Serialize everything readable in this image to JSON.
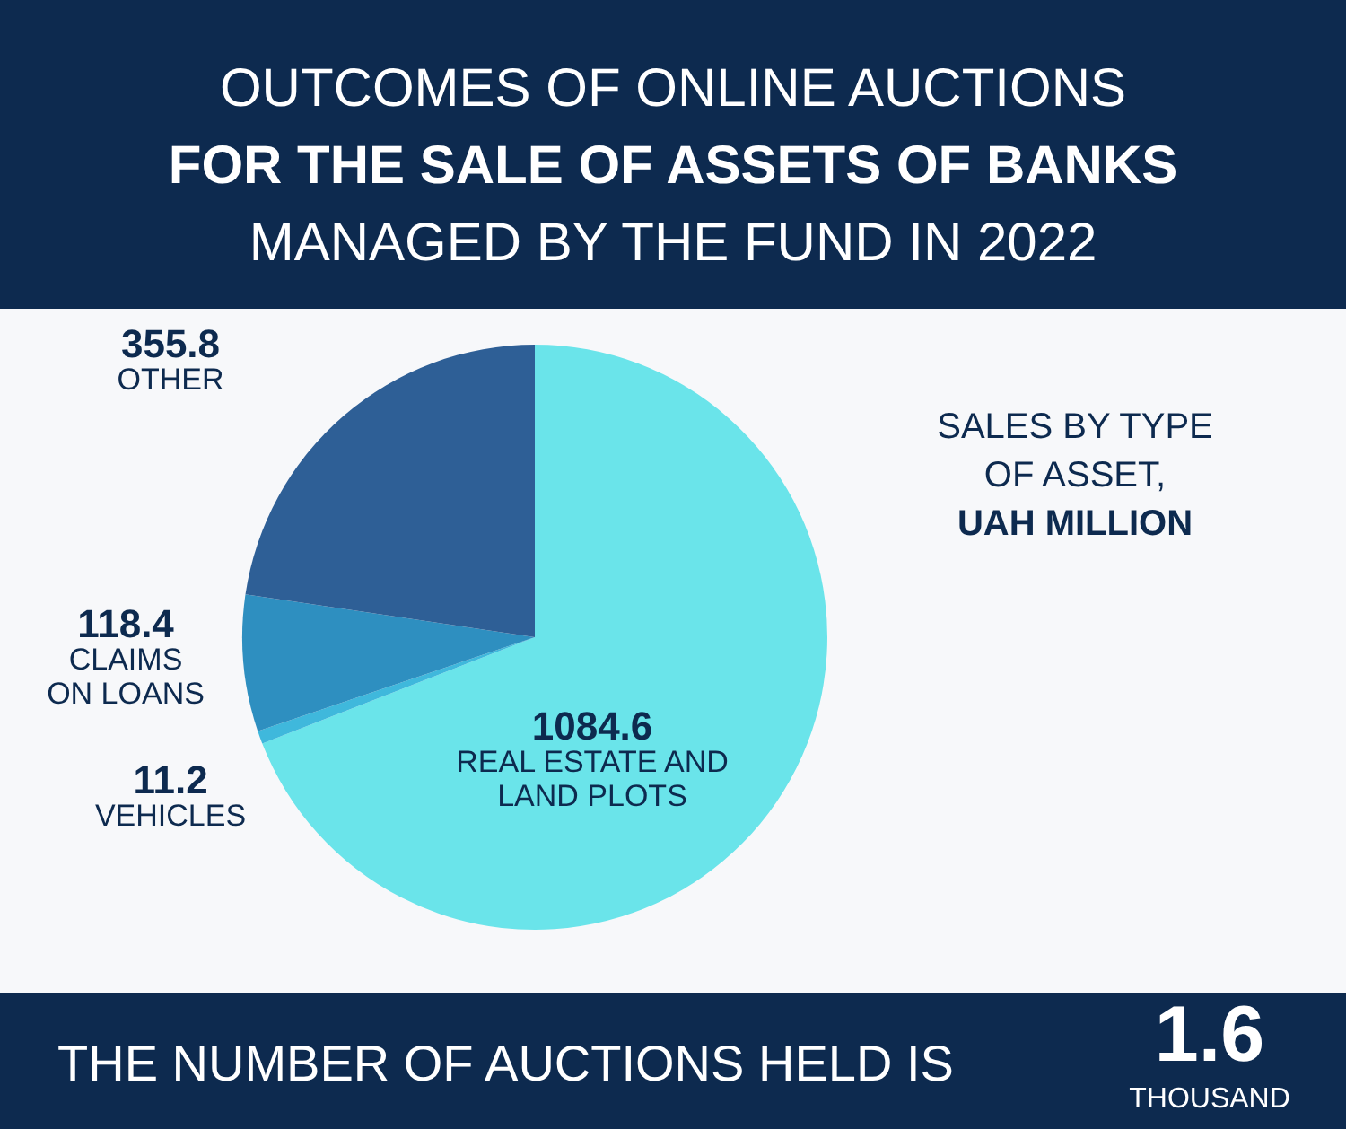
{
  "chart_data": {
    "type": "pie",
    "title": "OUTCOMES OF ONLINE AUCTIONS\nFOR THE SALE OF ASSETS OF BANKS\nMANAGED BY THE FUND IN 2022",
    "subtitle": "SALES BY TYPE\nOF ASSET,\nUAH MILLION",
    "categories": [
      "REAL ESTATE AND LAND PLOTS",
      "VEHICLES",
      "CLAIMS ON LOANS",
      "OTHER"
    ],
    "values": [
      1084.6,
      11.2,
      118.4,
      355.8
    ],
    "colors": [
      "#6ae4ea",
      "#3fb8dc",
      "#2e8fc0",
      "#2e5f96"
    ],
    "data_labels": true,
    "annotations": [
      "THE NUMBER OF AUCTIONS HELD IS",
      "1.6 THOUSAND"
    ]
  }
}
